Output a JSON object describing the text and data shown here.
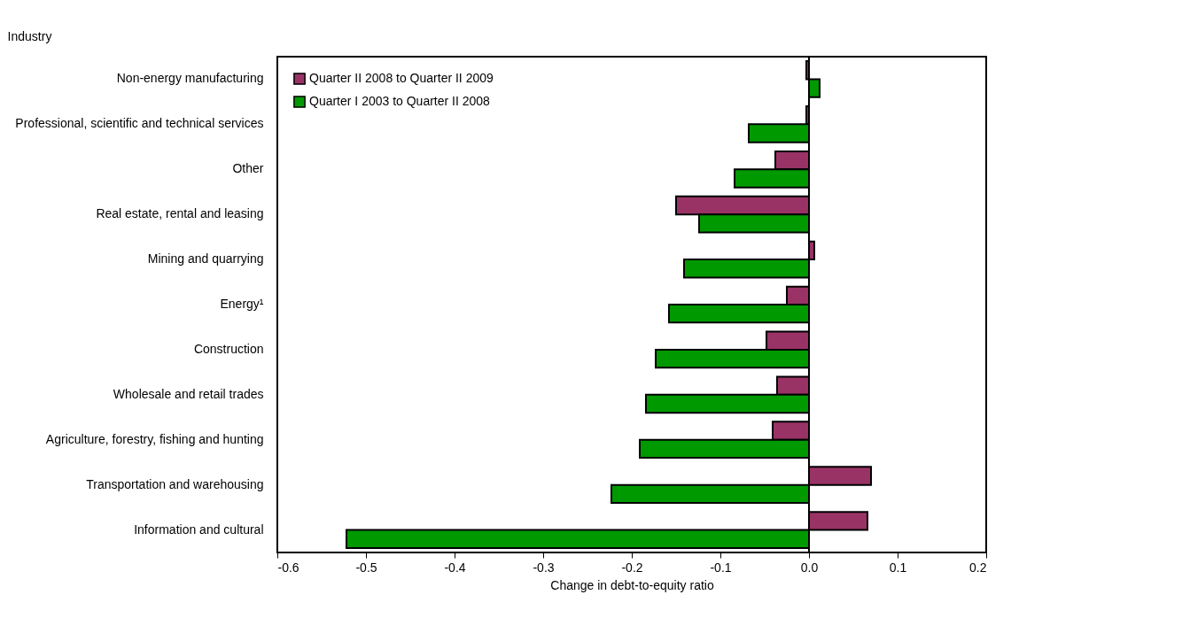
{
  "chart_data": {
    "type": "bar",
    "orientation": "horizontal",
    "xlabel": "Change in debt-to-equity ratio",
    "ylabel": "Industry",
    "categories": [
      "Non-energy manufacturing",
      "Professional, scientific and technical services",
      "Other",
      "Real estate, rental and leasing",
      "Mining and quarrying",
      "Energy¹",
      "Construction",
      "Wholesale and retail trades",
      "Agriculture, forestry, fishing and hunting",
      "Transportation and warehousing",
      "Information and cultural"
    ],
    "series": [
      {
        "name": "Quarter II 2008 to Quarter II 2009",
        "color": "#993366",
        "values": [
          -0.003,
          -0.003,
          -0.038,
          -0.15,
          0.006,
          -0.025,
          -0.048,
          -0.036,
          -0.041,
          0.07,
          0.066
        ]
      },
      {
        "name": "Quarter I  2003 to Quarter II 2008",
        "color": "#009900",
        "values": [
          0.012,
          -0.068,
          -0.084,
          -0.124,
          -0.141,
          -0.158,
          -0.173,
          -0.184,
          -0.191,
          -0.223,
          -0.522
        ]
      }
    ],
    "xlim": [
      -0.6,
      0.2
    ],
    "xticks": [
      {
        "value": -0.6,
        "label": "-0.6"
      },
      {
        "value": -0.5,
        "label": "-0.5"
      },
      {
        "value": -0.4,
        "label": "-0.4"
      },
      {
        "value": -0.3,
        "label": "-0.3"
      },
      {
        "value": -0.2,
        "label": "-0.2"
      },
      {
        "value": -0.1,
        "label": "-0.1"
      },
      {
        "value": 0,
        "label": "0.0"
      },
      {
        "value": 0.1,
        "label": "0.1"
      },
      {
        "value": 0.2,
        "label": "0.2"
      }
    ],
    "ref_lines": [
      {
        "axis": "x",
        "value": 0,
        "color": "#000000"
      }
    ],
    "grid": false,
    "legend": "top left"
  }
}
